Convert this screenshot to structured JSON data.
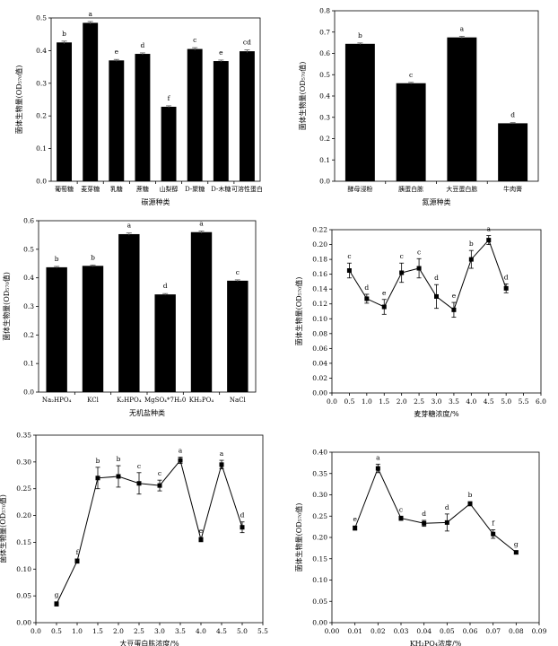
{
  "chart_data": [
    {
      "type": "bar",
      "title": "",
      "categories": [
        "葡萄糖",
        "麦芽糖",
        "乳糖",
        "蔗糖",
        "山梨醇",
        "D-聚糖",
        "D-木糖",
        "可溶性蛋白"
      ],
      "values": [
        0.425,
        0.485,
        0.37,
        0.39,
        0.228,
        0.405,
        0.368,
        0.398
      ],
      "errors": [
        0.004,
        0.004,
        0.003,
        0.003,
        0.003,
        0.004,
        0.003,
        0.004
      ],
      "labels": [
        "b",
        "a",
        "e",
        "d",
        "f",
        "c",
        "e",
        "cd"
      ],
      "xlabel": "碳源种类",
      "ylabel": "菌体生物量(OD₅₇₀值)",
      "ylim": [
        0,
        0.5
      ],
      "yticks": [
        0,
        0.1,
        0.2,
        0.3,
        0.4,
        0.5
      ]
    },
    {
      "type": "bar",
      "title": "",
      "categories": [
        "酵母浸粉",
        "胰蛋白胨",
        "大豆蛋白胨",
        "牛肉膏"
      ],
      "values": [
        0.645,
        0.46,
        0.675,
        0.272
      ],
      "errors": [
        0.004,
        0.004,
        0.005,
        0.003
      ],
      "labels": [
        "b",
        "c",
        "a",
        "d"
      ],
      "xlabel": "氮源种类",
      "ylabel": "菌体生物量(OD₅₇₀值)",
      "ylim": [
        0,
        0.8
      ],
      "yticks": [
        0,
        0.1,
        0.2,
        0.3,
        0.4,
        0.5,
        0.6,
        0.7,
        0.8
      ]
    },
    {
      "type": "bar",
      "title": "",
      "categories": [
        "Na₂HPO₄",
        "KCl",
        "K₂HPO₄",
        "MgSO₄*7H₂0",
        "KH₂PO₄",
        "NaCl"
      ],
      "values": [
        0.437,
        0.442,
        0.553,
        0.342,
        0.56,
        0.39
      ],
      "errors": [
        0.003,
        0.003,
        0.004,
        0.003,
        0.004,
        0.003
      ],
      "labels": [
        "b",
        "b",
        "a",
        "d",
        "a",
        "c"
      ],
      "xlabel": "无机盐种类",
      "ylabel": "菌体生物量(OD₅₇₀值)",
      "ylim": [
        0,
        0.6
      ],
      "yticks": [
        0,
        0.1,
        0.2,
        0.3,
        0.4,
        0.5,
        0.6
      ]
    },
    {
      "type": "line",
      "title": "",
      "x": [
        0.5,
        1.0,
        1.5,
        2.0,
        2.5,
        3.0,
        3.5,
        4.0,
        4.5,
        5.0
      ],
      "y": [
        0.165,
        0.127,
        0.116,
        0.162,
        0.168,
        0.13,
        0.112,
        0.18,
        0.206,
        0.141
      ],
      "errors": [
        0.01,
        0.006,
        0.01,
        0.013,
        0.013,
        0.016,
        0.01,
        0.012,
        0.006,
        0.006
      ],
      "labels": [
        "c",
        "d",
        "e",
        "c",
        "c",
        "d",
        "e",
        "b",
        "a",
        "d"
      ],
      "xlabel": "麦芽糖浓度/%",
      "ylabel": "菌体生物量(OD₅₇₀值)",
      "xlim": [
        0,
        6.0
      ],
      "ylim": [
        0,
        0.22
      ],
      "xticks": [
        0,
        0.5,
        1.0,
        1.5,
        2.0,
        2.5,
        3.0,
        3.5,
        4.0,
        4.5,
        5.0,
        5.5,
        6.0
      ],
      "xtick_labels": [
        "0.0",
        "0.5",
        "1.0",
        "1.5",
        "2.0",
        "2.5",
        "3.0",
        "3.5",
        "4.0",
        "4.5",
        "5.0",
        "5.5",
        "6.0"
      ],
      "yticks": [
        0,
        0.02,
        0.04,
        0.06,
        0.08,
        0.1,
        0.12,
        0.14,
        0.16,
        0.18,
        0.2,
        0.22
      ],
      "ytick_labels": [
        "0.00",
        "0.02",
        "0.04",
        "0.06",
        "0.08",
        "0.10",
        "0.12",
        "0.14",
        "0.16",
        "0.18",
        "0.20",
        "0.22"
      ]
    },
    {
      "type": "line",
      "title": "",
      "x": [
        0.5,
        1.0,
        1.5,
        2.0,
        2.5,
        3.0,
        3.5,
        4.0,
        4.5,
        5.0
      ],
      "y": [
        0.035,
        0.115,
        0.27,
        0.273,
        0.26,
        0.256,
        0.303,
        0.155,
        0.295,
        0.178
      ],
      "errors": [
        0.004,
        0.004,
        0.02,
        0.02,
        0.02,
        0.01,
        0.006,
        0.004,
        0.008,
        0.01
      ],
      "labels": [
        "g",
        "f",
        "b",
        "b",
        "c",
        "c",
        "a",
        "e",
        "a",
        "d"
      ],
      "xlabel": "大豆蛋白胨浓度/%",
      "ylabel": "菌体生物量(OD₅₇₀值)",
      "xlim": [
        0,
        5.5
      ],
      "ylim": [
        0,
        0.35
      ],
      "xticks": [
        0,
        0.5,
        1.0,
        1.5,
        2.0,
        2.5,
        3.0,
        3.5,
        4.0,
        4.5,
        5.0,
        5.5
      ],
      "xtick_labels": [
        "0.0",
        "0.5",
        "1.0",
        "1.5",
        "2.0",
        "2.5",
        "3.0",
        "3.5",
        "4.0",
        "4.5",
        "5.0",
        "5.5"
      ],
      "yticks": [
        0,
        0.05,
        0.1,
        0.15,
        0.2,
        0.25,
        0.3,
        0.35
      ],
      "ytick_labels": [
        "0.00",
        "0.05",
        "0.10",
        "0.15",
        "0.20",
        "0.25",
        "0.30",
        "0.35"
      ]
    },
    {
      "type": "line",
      "title": "",
      "x": [
        0.01,
        0.02,
        0.03,
        0.04,
        0.05,
        0.06,
        0.07,
        0.08
      ],
      "y": [
        0.222,
        0.362,
        0.245,
        0.233,
        0.235,
        0.279,
        0.208,
        0.165
      ],
      "errors": [
        0.005,
        0.01,
        0.005,
        0.007,
        0.02,
        0.005,
        0.01,
        0.003
      ],
      "labels": [
        "e",
        "a",
        "c",
        "d",
        "d",
        "b",
        "f",
        "g"
      ],
      "xlabel": "KH₂PO₄浓度/%",
      "ylabel": "菌体生物量(OD₅₇₀值)",
      "xlim": [
        0,
        0.09
      ],
      "ylim": [
        0,
        0.4
      ],
      "xticks": [
        0,
        0.01,
        0.02,
        0.03,
        0.04,
        0.05,
        0.06,
        0.07,
        0.08,
        0.09
      ],
      "xtick_labels": [
        "0.00",
        "0.01",
        "0.02",
        "0.03",
        "0.04",
        "0.05",
        "0.06",
        "0.07",
        "0.08",
        "0.09"
      ],
      "yticks": [
        0,
        0.05,
        0.1,
        0.15,
        0.2,
        0.25,
        0.3,
        0.35,
        0.4
      ],
      "ytick_labels": [
        "0.00",
        "0.05",
        "0.10",
        "0.15",
        "0.20",
        "0.25",
        "0.30",
        "0.35",
        "0.40"
      ]
    }
  ]
}
